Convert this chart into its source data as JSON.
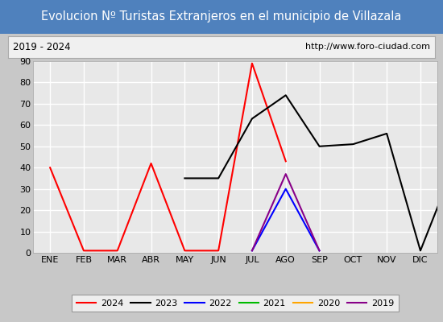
{
  "title": "Evolucion Nº Turistas Extranjeros en el municipio de Villazala",
  "subtitle_left": "2019 - 2024",
  "subtitle_right": "http://www.foro-ciudad.com",
  "x_labels": [
    "ENE",
    "FEB",
    "MAR",
    "ABR",
    "MAY",
    "JUN",
    "JUL",
    "AGO",
    "SEP",
    "OCT",
    "NOV",
    "DIC"
  ],
  "ylim": [
    0,
    90
  ],
  "yticks": [
    0,
    10,
    20,
    30,
    40,
    50,
    60,
    70,
    80,
    90
  ],
  "series_x": {
    "2024": [
      1,
      2,
      3,
      4,
      5,
      6,
      7,
      8
    ],
    "2023": [
      5,
      6,
      7,
      8,
      9,
      10,
      11,
      12,
      13
    ],
    "2022": [
      7,
      8,
      9
    ],
    "2021": [],
    "2020": [],
    "2019": [
      7,
      8,
      9
    ]
  },
  "series_y": {
    "2024": [
      40,
      1,
      1,
      42,
      1,
      1,
      89,
      43
    ],
    "2023": [
      35,
      35,
      63,
      74,
      50,
      51,
      56,
      1,
      41
    ],
    "2022": [
      1,
      30,
      1
    ],
    "2021": [],
    "2020": [],
    "2019": [
      1,
      37,
      1
    ]
  },
  "series_colors": {
    "2024": "#ff0000",
    "2023": "#000000",
    "2022": "#0000ff",
    "2021": "#00bb00",
    "2020": "#ffa500",
    "2019": "#880088"
  },
  "legend_order": [
    "2024",
    "2023",
    "2022",
    "2021",
    "2020",
    "2019"
  ],
  "title_bg_color": "#4f81bd",
  "title_text_color": "#ffffff",
  "subtitle_bg_color": "#f0f0f0",
  "subtitle_border_color": "#aaaaaa",
  "plot_bg_color": "#e8e8e8",
  "grid_color": "#ffffff",
  "outer_bg_color": "#c8c8c8",
  "line_width": 1.5
}
